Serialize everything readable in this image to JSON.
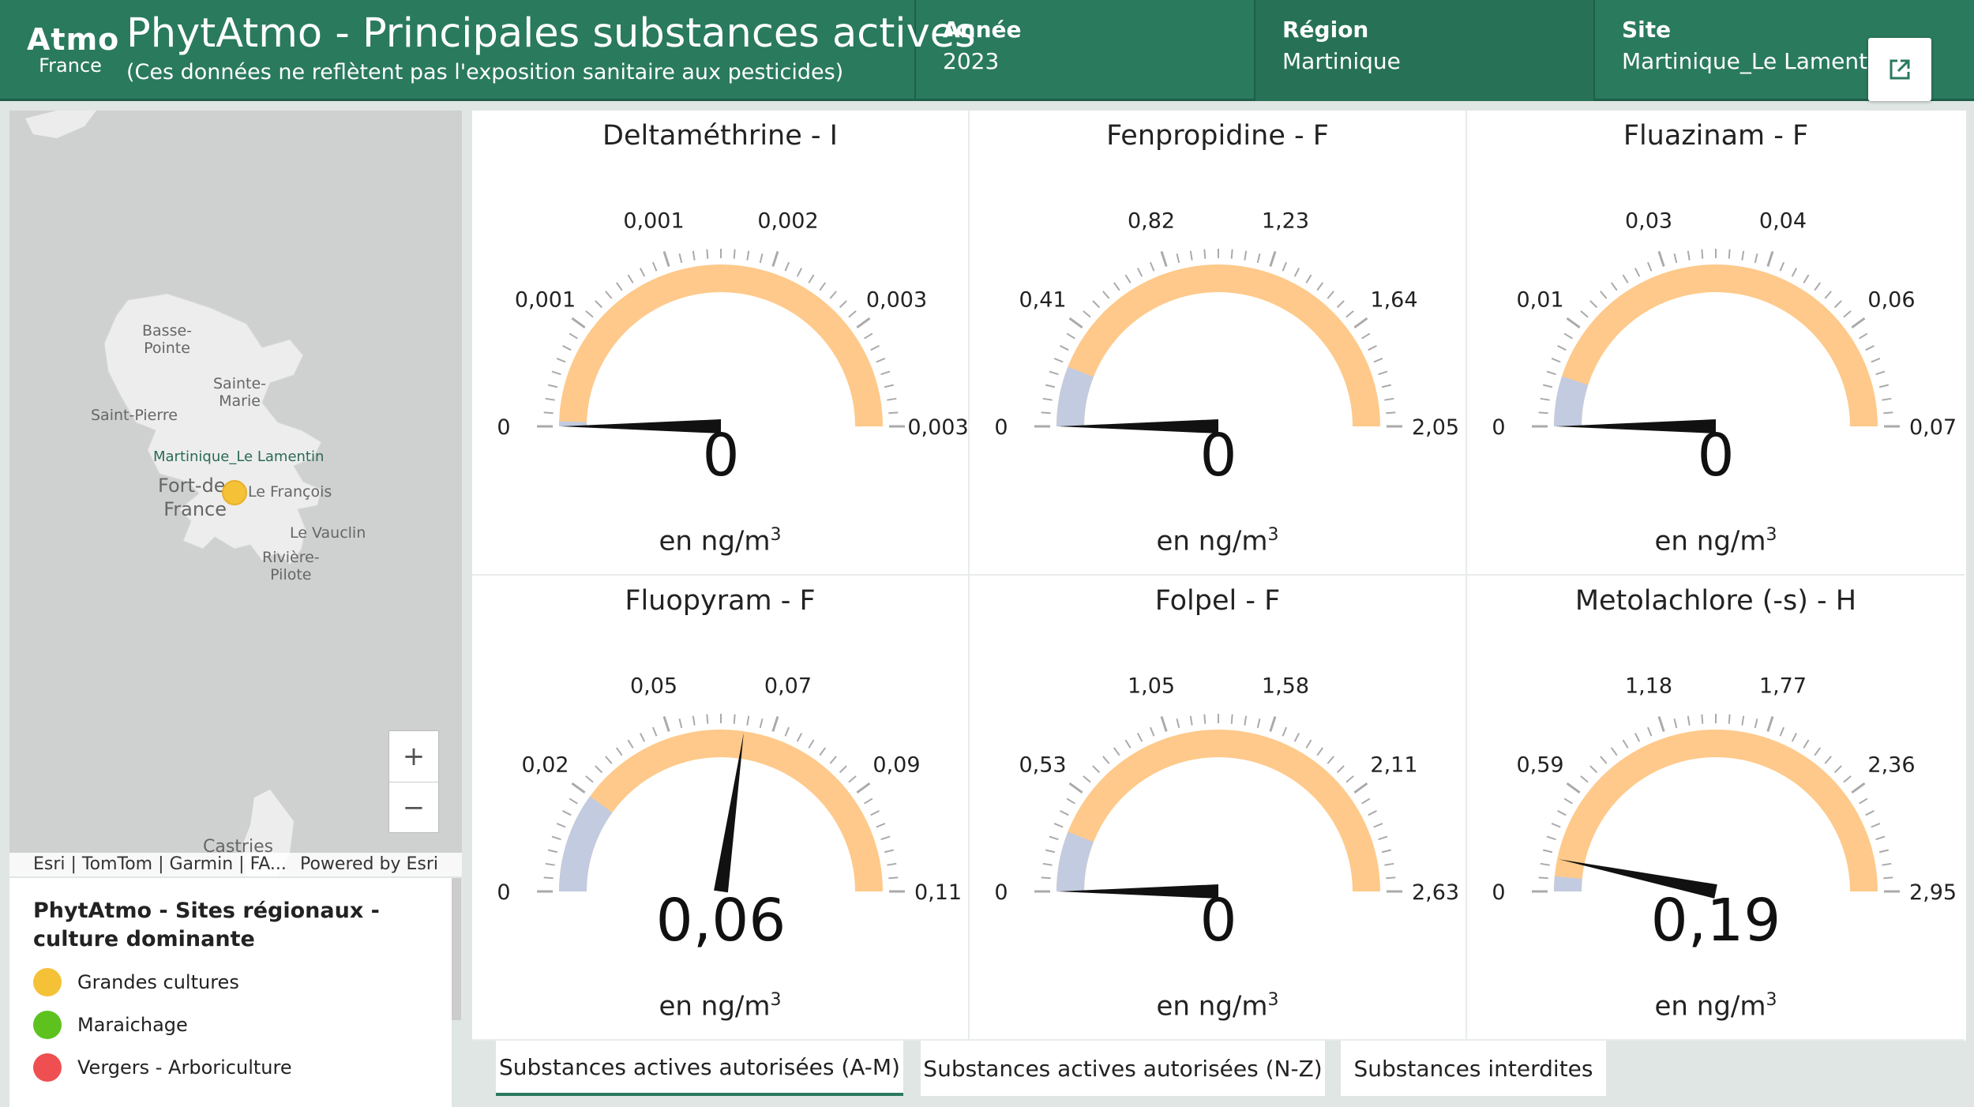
{
  "header": {
    "logo_main": "Atmo",
    "logo_sub": "France",
    "title": "PhytAtmo - Principales substances actives",
    "subtitle": "(Ces données ne reflètent pas l'exposition sanitaire aux pesticides)",
    "filters": [
      {
        "label": "Année",
        "value": "2023"
      },
      {
        "label": "Région",
        "value": "Martinique"
      },
      {
        "label": "Site",
        "value": "Martinique_Le Lamentin"
      }
    ],
    "external_icon": "external-link-icon"
  },
  "map": {
    "places": {
      "basse_pointe_1": "Basse-",
      "basse_pointe_2": "Pointe",
      "sainte_marie_1": "Sainte-",
      "sainte_marie_2": "Marie",
      "saint_pierre": "Saint-Pierre",
      "site": "Martinique_Le Lamentin",
      "fort_de_france_1": "Fort-de-",
      "fort_de_france_2": "France",
      "le_francois": "Le François",
      "le_vauclin": "Le Vauclin",
      "riviere_pilote_1": "Rivière-",
      "riviere_pilote_2": "Pilote",
      "castries": "Castries"
    },
    "zoom_in": "+",
    "zoom_out": "−",
    "attribution": "Esri | TomTom | Garmin | FA...",
    "powered_by": "Powered by Esri"
  },
  "legend": {
    "title": "PhytAtmo - Sites régionaux - culture dominante",
    "items": [
      {
        "label": "Grandes cultures",
        "color": "#f5c137"
      },
      {
        "label": "Maraichage",
        "color": "#5ec21e"
      },
      {
        "label": "Vergers - Arboriculture",
        "color": "#ef4f51"
      }
    ]
  },
  "gauges": [
    {
      "title": "Deltaméthrine - I",
      "value": 0,
      "display": "0",
      "max": 0.003,
      "ticks": [
        "0",
        "0,001",
        "0,001",
        "0,002",
        "0,003",
        "0,003"
      ],
      "low_frac": 0.01,
      "unit": "en ng/m",
      "unit_sup": "3"
    },
    {
      "title": "Fenpropidine - F",
      "value": 0,
      "display": "0",
      "max": 2.05,
      "ticks": [
        "0",
        "0,41",
        "0,82",
        "1,23",
        "1,64",
        "2,05"
      ],
      "low_frac": 0.12,
      "unit": "en ng/m",
      "unit_sup": "3"
    },
    {
      "title": "Fluazinam - F",
      "value": 0,
      "display": "0",
      "max": 0.07,
      "ticks": [
        "0",
        "0,01",
        "0,03",
        "0,04",
        "0,06",
        "0,07"
      ],
      "low_frac": 0.1,
      "unit": "en ng/m",
      "unit_sup": "3"
    },
    {
      "title": "Fluopyram - F",
      "value": 0.06,
      "display": "0,06",
      "max": 0.11,
      "ticks": [
        "0",
        "0,02",
        "0,05",
        "0,07",
        "0,09",
        "0,11"
      ],
      "low_frac": 0.2,
      "unit": "en ng/m",
      "unit_sup": "3"
    },
    {
      "title": "Folpel - F",
      "value": 0,
      "display": "0",
      "max": 2.63,
      "ticks": [
        "0",
        "0,53",
        "1,05",
        "1,58",
        "2,11",
        "2,63"
      ],
      "low_frac": 0.12,
      "unit": "en ng/m",
      "unit_sup": "3"
    },
    {
      "title": "Metolachlore (-s) - H",
      "value": 0.19,
      "display": "0,19",
      "max": 2.95,
      "ticks": [
        "0",
        "0,59",
        "1,18",
        "1,77",
        "2,36",
        "2,95"
      ],
      "low_frac": 0.03,
      "unit": "en ng/m",
      "unit_sup": "3"
    }
  ],
  "gauge_colors": {
    "fill": "#fec98a",
    "low": "#c3cbe0",
    "needle": "#111111",
    "tick": "#aaaaaa"
  },
  "tabs": [
    {
      "label": "Substances actives autorisées (A-M)",
      "active": true
    },
    {
      "label": "Substances actives autorisées (N-Z)",
      "active": false
    },
    {
      "label": "Substances interdites",
      "active": false
    }
  ]
}
